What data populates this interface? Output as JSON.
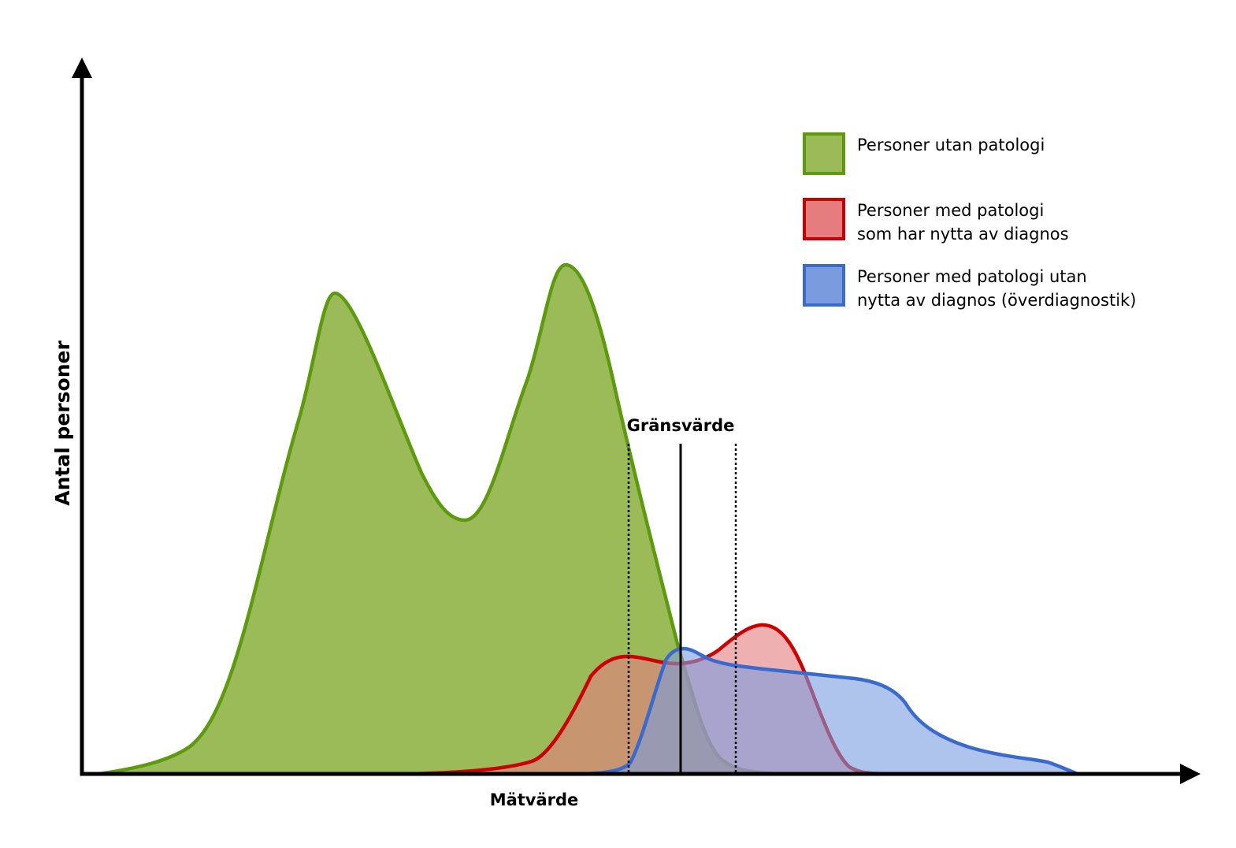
{
  "axes": {
    "x_label": "Mätvärde",
    "y_label": "Antal personer"
  },
  "threshold": {
    "label": "Gränsvärde"
  },
  "legend": [
    {
      "lines": [
        "Personer utan patologi"
      ],
      "fill": "#9BBB59",
      "stroke": "#5E9A0F"
    },
    {
      "lines": [
        "Personer med patologi",
        "som har nytta av diagnos"
      ],
      "fill": "#E57C7E",
      "stroke": "#CC0000"
    },
    {
      "lines": [
        "Personer med patologi utan",
        "nytta av diagnos (överdiagnostik)"
      ],
      "fill": "#7A9CDF",
      "stroke": "#3A6ACB"
    }
  ],
  "colors": {
    "healthy_fill": "#9BBB59",
    "healthy_stroke": "#5E9A0F",
    "benefit_fill": "#E57C7E",
    "benefit_stroke": "#CC0000",
    "overdiag_fill": "#7A9CDF",
    "overdiag_stroke": "#3A6ACB",
    "axis": "#000000"
  }
}
